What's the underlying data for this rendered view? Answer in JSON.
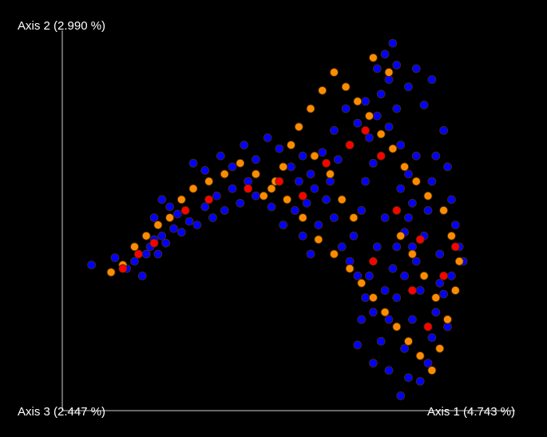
{
  "chart_data": {
    "type": "scatter",
    "title": "",
    "axes": {
      "axis1_label": "Axis 1 (4.743 %)",
      "axis2_label": "Axis 2 (2.990 %)",
      "axis3_label": "Axis 3 (2.447 %)"
    },
    "grid": false,
    "legend": "none",
    "background_color": "#000000",
    "series": [
      {
        "color": "#0000ff",
        "points": [
          [
            0.04,
            0.63
          ],
          [
            0.1,
            0.61
          ],
          [
            0.13,
            0.64
          ],
          [
            0.15,
            0.62
          ],
          [
            0.17,
            0.66
          ],
          [
            0.18,
            0.6
          ],
          [
            0.19,
            0.58
          ],
          [
            0.2,
            0.56
          ],
          [
            0.21,
            0.6
          ],
          [
            0.22,
            0.55
          ],
          [
            0.23,
            0.57
          ],
          [
            0.25,
            0.53
          ],
          [
            0.27,
            0.54
          ],
          [
            0.2,
            0.5
          ],
          [
            0.22,
            0.45
          ],
          [
            0.24,
            0.47
          ],
          [
            0.26,
            0.49
          ],
          [
            0.29,
            0.51
          ],
          [
            0.31,
            0.52
          ],
          [
            0.33,
            0.47
          ],
          [
            0.35,
            0.5
          ],
          [
            0.36,
            0.44
          ],
          [
            0.38,
            0.48
          ],
          [
            0.4,
            0.42
          ],
          [
            0.42,
            0.46
          ],
          [
            0.44,
            0.4
          ],
          [
            0.46,
            0.44
          ],
          [
            0.3,
            0.35
          ],
          [
            0.33,
            0.37
          ],
          [
            0.37,
            0.33
          ],
          [
            0.4,
            0.36
          ],
          [
            0.43,
            0.3
          ],
          [
            0.46,
            0.34
          ],
          [
            0.49,
            0.28
          ],
          [
            0.52,
            0.31
          ],
          [
            0.55,
            0.36
          ],
          [
            0.57,
            0.4
          ],
          [
            0.5,
            0.47
          ],
          [
            0.53,
            0.52
          ],
          [
            0.56,
            0.48
          ],
          [
            0.58,
            0.55
          ],
          [
            0.6,
            0.6
          ],
          [
            0.62,
            0.52
          ],
          [
            0.64,
            0.45
          ],
          [
            0.66,
            0.5
          ],
          [
            0.68,
            0.58
          ],
          [
            0.7,
            0.62
          ],
          [
            0.72,
            0.66
          ],
          [
            0.71,
            0.55
          ],
          [
            0.73,
            0.48
          ],
          [
            0.74,
            0.4
          ],
          [
            0.76,
            0.35
          ],
          [
            0.75,
            0.28
          ],
          [
            0.77,
            0.22
          ],
          [
            0.78,
            0.16
          ],
          [
            0.8,
            0.12
          ],
          [
            0.82,
            0.2
          ],
          [
            0.83,
            0.3
          ],
          [
            0.85,
            0.38
          ],
          [
            0.86,
            0.46
          ],
          [
            0.84,
            0.54
          ],
          [
            0.87,
            0.62
          ],
          [
            0.88,
            0.7
          ],
          [
            0.86,
            0.78
          ],
          [
            0.84,
            0.86
          ],
          [
            0.85,
            0.94
          ],
          [
            0.83,
            0.99
          ],
          [
            0.8,
            0.92
          ],
          [
            0.78,
            0.84
          ],
          [
            0.76,
            0.76
          ],
          [
            0.79,
            0.7
          ],
          [
            0.81,
            0.64
          ],
          [
            0.82,
            0.58
          ],
          [
            0.89,
            0.55
          ],
          [
            0.9,
            0.48
          ],
          [
            0.91,
            0.4
          ],
          [
            0.92,
            0.33
          ],
          [
            0.94,
            0.26
          ],
          [
            0.95,
            0.36
          ],
          [
            0.96,
            0.45
          ],
          [
            0.97,
            0.52
          ],
          [
            0.98,
            0.58
          ],
          [
            0.99,
            0.62
          ],
          [
            0.93,
            0.68
          ],
          [
            0.92,
            0.76
          ],
          [
            0.91,
            0.83
          ],
          [
            0.9,
            0.9
          ],
          [
            0.88,
            0.95
          ],
          [
            0.7,
            0.3
          ],
          [
            0.72,
            0.24
          ],
          [
            0.74,
            0.18
          ],
          [
            0.69,
            0.2
          ],
          [
            0.66,
            0.26
          ],
          [
            0.67,
            0.34
          ],
          [
            0.65,
            0.4
          ],
          [
            0.63,
            0.32
          ],
          [
            0.61,
            0.42
          ],
          [
            0.59,
            0.46
          ],
          [
            0.6,
            0.38
          ],
          [
            0.58,
            0.33
          ],
          [
            0.82,
            0.08
          ],
          [
            0.79,
            0.05
          ],
          [
            0.77,
            0.09
          ],
          [
            0.81,
            0.02
          ],
          [
            0.85,
            0.14
          ],
          [
            0.87,
            0.09
          ],
          [
            0.91,
            0.12
          ],
          [
            0.89,
            0.19
          ],
          [
            0.8,
            0.25
          ],
          [
            0.83,
            0.42
          ],
          [
            0.85,
            0.5
          ],
          [
            0.87,
            0.33
          ],
          [
            0.93,
            0.6
          ],
          [
            0.94,
            0.71
          ],
          [
            0.95,
            0.8
          ],
          [
            0.96,
            0.66
          ],
          [
            0.79,
            0.5
          ],
          [
            0.77,
            0.58
          ],
          [
            0.75,
            0.66
          ],
          [
            0.74,
            0.72
          ],
          [
            0.73,
            0.78
          ],
          [
            0.72,
            0.85
          ],
          [
            0.76,
            0.9
          ],
          [
            0.8,
            0.78
          ],
          [
            0.82,
            0.72
          ],
          [
            0.84,
            0.66
          ],
          [
            0.86,
            0.58
          ]
        ]
      },
      {
        "color": "#ff8c00",
        "points": [
          [
            0.09,
            0.65
          ],
          [
            0.12,
            0.63
          ],
          [
            0.15,
            0.58
          ],
          [
            0.18,
            0.55
          ],
          [
            0.21,
            0.52
          ],
          [
            0.24,
            0.5
          ],
          [
            0.27,
            0.45
          ],
          [
            0.3,
            0.42
          ],
          [
            0.34,
            0.4
          ],
          [
            0.38,
            0.38
          ],
          [
            0.42,
            0.35
          ],
          [
            0.46,
            0.38
          ],
          [
            0.5,
            0.42
          ],
          [
            0.54,
            0.45
          ],
          [
            0.58,
            0.5
          ],
          [
            0.62,
            0.56
          ],
          [
            0.66,
            0.6
          ],
          [
            0.7,
            0.64
          ],
          [
            0.73,
            0.68
          ],
          [
            0.76,
            0.72
          ],
          [
            0.79,
            0.76
          ],
          [
            0.82,
            0.8
          ],
          [
            0.85,
            0.84
          ],
          [
            0.88,
            0.88
          ],
          [
            0.91,
            0.92
          ],
          [
            0.93,
            0.86
          ],
          [
            0.95,
            0.78
          ],
          [
            0.97,
            0.7
          ],
          [
            0.98,
            0.62
          ],
          [
            0.96,
            0.55
          ],
          [
            0.94,
            0.48
          ],
          [
            0.9,
            0.44
          ],
          [
            0.87,
            0.4
          ],
          [
            0.84,
            0.36
          ],
          [
            0.81,
            0.31
          ],
          [
            0.78,
            0.27
          ],
          [
            0.75,
            0.22
          ],
          [
            0.72,
            0.18
          ],
          [
            0.69,
            0.14
          ],
          [
            0.66,
            0.1
          ],
          [
            0.63,
            0.15
          ],
          [
            0.6,
            0.2
          ],
          [
            0.57,
            0.25
          ],
          [
            0.55,
            0.3
          ],
          [
            0.53,
            0.36
          ],
          [
            0.51,
            0.4
          ],
          [
            0.48,
            0.44
          ],
          [
            0.8,
            0.1
          ],
          [
            0.76,
            0.06
          ],
          [
            0.86,
            0.6
          ],
          [
            0.89,
            0.66
          ],
          [
            0.92,
            0.72
          ],
          [
            0.83,
            0.55
          ],
          [
            0.71,
            0.5
          ],
          [
            0.68,
            0.45
          ],
          [
            0.65,
            0.38
          ],
          [
            0.61,
            0.33
          ]
        ]
      },
      {
        "color": "#ff0000",
        "points": [
          [
            0.12,
            0.64
          ],
          [
            0.16,
            0.6
          ],
          [
            0.2,
            0.57
          ],
          [
            0.28,
            0.48
          ],
          [
            0.34,
            0.45
          ],
          [
            0.44,
            0.42
          ],
          [
            0.52,
            0.4
          ],
          [
            0.58,
            0.44
          ],
          [
            0.64,
            0.35
          ],
          [
            0.7,
            0.3
          ],
          [
            0.74,
            0.26
          ],
          [
            0.78,
            0.33
          ],
          [
            0.82,
            0.48
          ],
          [
            0.86,
            0.7
          ],
          [
            0.9,
            0.8
          ],
          [
            0.94,
            0.66
          ],
          [
            0.97,
            0.58
          ],
          [
            0.88,
            0.56
          ],
          [
            0.76,
            0.62
          ]
        ]
      }
    ]
  }
}
